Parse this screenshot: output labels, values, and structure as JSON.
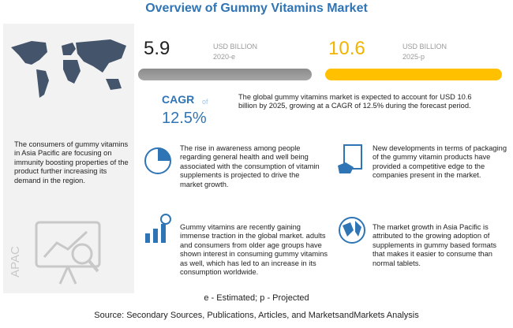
{
  "header": {
    "title": "Overview of Gummy Vitamins Market"
  },
  "stats": [
    {
      "value": "5.9",
      "unit": "USD BILLION",
      "year": "2020-e"
    },
    {
      "value": "10.6",
      "unit": "USD BILLION",
      "year": "2025-p"
    }
  ],
  "cagr": {
    "label": "CAGR",
    "of": "of",
    "value": "12.5%"
  },
  "summary": "The global gummy vitamins market is expected to account for USD 10.6 billion by 2025, growing at a CAGR of 12.5% during the forecast period.",
  "region": {
    "text": "The consumers of gummy vitamins in Asia Pacific are focusing on immunity boosting properties of the product further increasing its demand in the region.",
    "label": "APAC"
  },
  "insights": [
    "The rise in awareness among people regarding general health and well being associated with the consumption of vitamin supplements is projected to drive the market growth.",
    "New developments in terms of packaging of the gummy vitamin products have provided a competitive edge to the companies present in the market.",
    "Gummy vitamins are recently gaining immense traction in the global market. adults and consumers from older age groups have shown interest in consuming gummy vitamins as well, which has led to an increase in its consumption worldwide.",
    "The market growth in Asia Pacific is attributed to the growing adoption of supplements in gummy based formats that makes it easier to consume than normal tablets."
  ],
  "footnote": "e - Estimated; p - Projected",
  "source": "Source: Secondary Sources, Publications, Articles, and MarketsandMarkets Analysis"
}
